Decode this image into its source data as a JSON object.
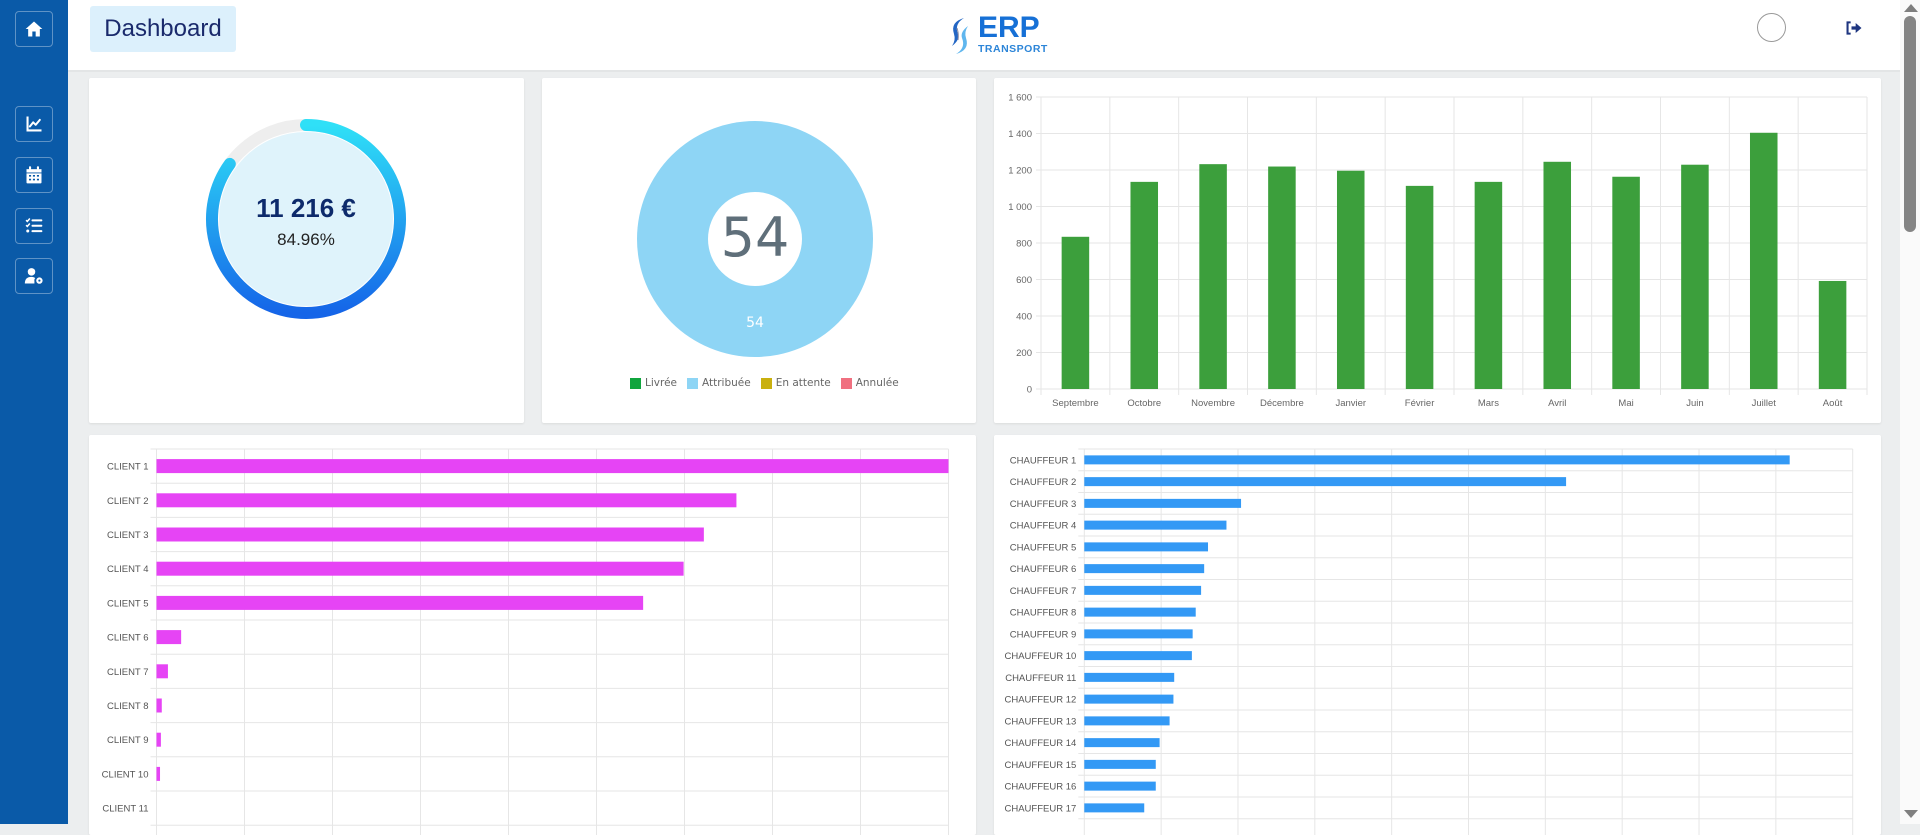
{
  "header": {
    "title": "Dashboard",
    "logo_main": "ERP",
    "logo_sub": "TRANSPORT"
  },
  "sidebar": {
    "items": [
      {
        "icon": "home-icon",
        "label": "Accueil"
      },
      {
        "icon": "chart-line-icon",
        "label": "Statistiques"
      },
      {
        "icon": "calendar-icon",
        "label": "Calendrier"
      },
      {
        "icon": "task-list-icon",
        "label": "Tâches"
      },
      {
        "icon": "user-settings-icon",
        "label": "Utilisateurs"
      }
    ]
  },
  "colors": {
    "sidebar": "#0a5aa8",
    "gauge_start": "#2fe0f7",
    "gauge_end": "#1565e8",
    "monthly_bar": "#3c9f3c",
    "client_bar": "#e644f5",
    "driver_bar": "#3399f5",
    "donut": "#8ed5f5"
  },
  "gauge": {
    "amount": "11 216 €",
    "percent_label": "84.96%",
    "percent": 84.96
  },
  "chart_data": [
    {
      "type": "pie",
      "title": "",
      "center_label": "54",
      "slices": [
        {
          "name": "Livrée",
          "value": 0,
          "color": "#10a53e"
        },
        {
          "name": "Attribuée",
          "value": 54,
          "color": "#8ed5f5"
        },
        {
          "name": "En attente",
          "value": 0,
          "color": "#c9b00f"
        },
        {
          "name": "Annulée",
          "value": 0,
          "color": "#f07080"
        }
      ],
      "legend": "bottom"
    },
    {
      "type": "bar",
      "title": "",
      "categories": [
        "Septembre",
        "Octobre",
        "Novembre",
        "Décembre",
        "Janvier",
        "Février",
        "Mars",
        "Avril",
        "Mai",
        "Juin",
        "Juillet",
        "Août"
      ],
      "values": [
        834,
        1135,
        1232,
        1219,
        1196,
        1113,
        1135,
        1245,
        1163,
        1229,
        1404,
        592
      ],
      "ylim": [
        0,
        1600
      ],
      "yticks": [
        "0",
        "200",
        "400",
        "600",
        "800",
        "1 000",
        "1 200",
        "1 400",
        "1 600"
      ],
      "xlabel": "",
      "ylabel": "",
      "grid": true
    },
    {
      "type": "bar",
      "orientation": "horizontal",
      "title": "",
      "categories": [
        "CLIENT 1",
        "CLIENT 2",
        "CLIENT 3",
        "CLIENT 4",
        "CLIENT 5",
        "CLIENT 6",
        "CLIENT 7",
        "CLIENT 8",
        "CLIENT 9",
        "CLIENT 10",
        "CLIENT 11"
      ],
      "values": [
        9.0,
        6.59,
        6.22,
        5.99,
        5.53,
        0.28,
        0.13,
        0.06,
        0.05,
        0.04,
        0
      ],
      "xlim": [
        0,
        9
      ],
      "grid": true
    },
    {
      "type": "bar",
      "orientation": "horizontal",
      "title": "",
      "categories": [
        "CHAUFFEUR 1",
        "CHAUFFEUR 2",
        "CHAUFFEUR 3",
        "CHAUFFEUR 4",
        "CHAUFFEUR 5",
        "CHAUFFEUR 6",
        "CHAUFFEUR 7",
        "CHAUFFEUR 8",
        "CHAUFFEUR 9",
        "CHAUFFEUR 10",
        "CHAUFFEUR 11",
        "CHAUFFEUR 12",
        "CHAUFFEUR 13",
        "CHAUFFEUR 14",
        "CHAUFFEUR 15",
        "CHAUFFEUR 16",
        "CHAUFFEUR 17"
      ],
      "values": [
        9.18,
        6.27,
        2.04,
        1.85,
        1.61,
        1.56,
        1.52,
        1.45,
        1.41,
        1.4,
        1.17,
        1.16,
        1.11,
        0.98,
        0.93,
        0.93,
        0.78
      ],
      "xlim": [
        0,
        10
      ],
      "grid": true
    }
  ]
}
